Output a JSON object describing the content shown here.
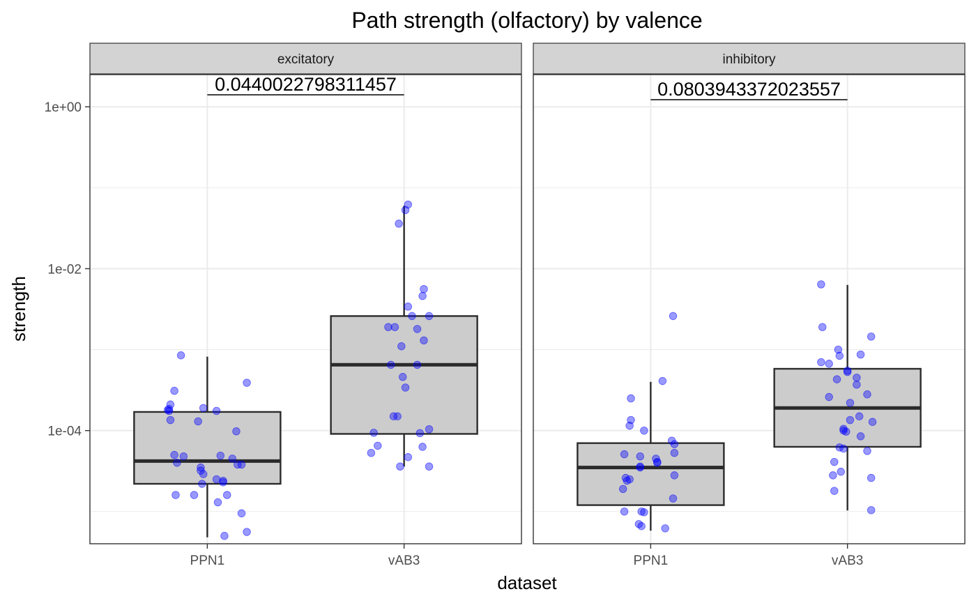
{
  "chart_data": {
    "type": "box",
    "title": "Path strength (olfactory) by valence",
    "xlabel": "dataset",
    "ylabel": "strength",
    "y_scale": "log10",
    "ylim": [
      4e-06,
      2.5
    ],
    "y_ticks": [
      {
        "value": 1,
        "label": "1e+00"
      },
      {
        "value": 0.01,
        "label": "1e-02"
      },
      {
        "value": 0.0001,
        "label": "1e-04"
      }
    ],
    "categories": [
      "PPN1",
      "vAB3"
    ],
    "grid": true,
    "colors": {
      "box_fill": "#cccccc",
      "box_line": "#2b2b2b",
      "points": "#0000ff",
      "strip_fill": "#d3d3d3",
      "grid": "#ebebeb"
    },
    "panels": [
      {
        "label": "excitatory",
        "p_value": "0.0440022798311457",
        "boxes": [
          {
            "category": "PPN1",
            "min": 4.8e-06,
            "q1": 2.2e-05,
            "median": 4.2e-05,
            "q3": 0.00017,
            "max": 0.00082,
            "points": [
              0.00085,
              0.00031,
              0.00039,
              0.00021,
              0.00019,
              0.00018,
              0.000175,
              0.000185,
              0.000175,
              0.000135,
              0.00013,
              9.8e-05,
              5e-05,
              4.8e-05,
              4.9e-05,
              4.5e-05,
              4e-05,
              3.8e-05,
              3.5e-05,
              3.8e-05,
              3.2e-05,
              2.9e-05,
              2.5e-05,
              2.4e-05,
              2.3e-05,
              2.2e-05,
              1.6e-05,
              1.6e-05,
              1.6e-05,
              1.3e-05,
              9.5e-06,
              5.6e-06,
              5e-06
            ],
            "jitter": [
              -0.2,
              -0.25,
              0.3,
              -0.28,
              -0.03,
              -0.3,
              -0.29,
              -0.29,
              0.07,
              -0.28,
              -0.07,
              0.22,
              -0.25,
              -0.18,
              0.1,
              0.19,
              -0.23,
              0.23,
              -0.05,
              0.26,
              -0.05,
              -0.03,
              0.07,
              0.12,
              0.12,
              -0.04,
              -0.24,
              -0.1,
              0.15,
              0.08,
              0.26,
              0.3,
              0.13
            ]
          },
          {
            "category": "vAB3",
            "min": 3.6e-05,
            "q1": 9.1e-05,
            "median": 0.00065,
            "q3": 0.0026,
            "max": 0.06,
            "points": [
              0.062,
              0.053,
              0.036,
              0.0056,
              0.0046,
              0.0034,
              0.0026,
              0.0026,
              0.0019,
              0.0019,
              0.0018,
              0.0013,
              0.0011,
              0.00065,
              0.00065,
              0.00046,
              0.00034,
              0.00015,
              0.00015,
              0.000104,
              9.4e-05,
              9.3e-05,
              6.5e-05,
              6.3e-05,
              5.3e-05,
              4.7e-05,
              3.6e-05,
              3.6e-05
            ],
            "jitter": [
              0.03,
              0.01,
              -0.04,
              0.15,
              0.14,
              0.03,
              0.06,
              0.19,
              -0.12,
              -0.07,
              0.1,
              0.15,
              -0.02,
              0.1,
              -0.1,
              -0.01,
              0.01,
              -0.08,
              -0.05,
              0.19,
              -0.23,
              0.12,
              -0.2,
              0.14,
              -0.25,
              0.03,
              -0.03,
              0.19
            ]
          }
        ]
      },
      {
        "label": "inhibitory",
        "p_value": "0.0803943372023557",
        "boxes": [
          {
            "category": "PPN1",
            "min": 5.8e-06,
            "q1": 1.2e-05,
            "median": 3.5e-05,
            "q3": 7e-05,
            "max": 0.0004,
            "points": [
              0.0026,
              0.00041,
              0.00025,
              0.000135,
              0.000115,
              0.0001,
              7.5e-05,
              6.8e-05,
              5.3e-05,
              5.1e-05,
              4.8e-05,
              4.5e-05,
              4.1e-05,
              4e-05,
              3.6e-05,
              3.5e-05,
              2.8e-05,
              2.6e-05,
              2.5e-05,
              2.4e-05,
              1.9e-05,
              1.45e-05,
              1e-05,
              1e-05,
              9.8e-06,
              7e-06,
              6.6e-06,
              6.2e-06
            ],
            "jitter": [
              0.17,
              0.09,
              -0.15,
              -0.15,
              -0.16,
              -0.05,
              0.16,
              0.18,
              0.18,
              -0.2,
              -0.08,
              0.04,
              0.05,
              0.05,
              -0.08,
              -0.08,
              0.18,
              -0.19,
              -0.16,
              -0.18,
              -0.21,
              0.17,
              -0.2,
              -0.07,
              -0.05,
              -0.09,
              -0.07,
              0.11
            ]
          },
          {
            "category": "vAB3",
            "min": 1.03e-05,
            "q1": 6.3e-05,
            "median": 0.00019,
            "q3": 0.00058,
            "max": 0.0063,
            "points": [
              0.0064,
              0.0019,
              0.00145,
              0.001,
              0.00087,
              0.00084,
              0.0007,
              0.00067,
              0.00055,
              0.00053,
              0.00045,
              0.00043,
              0.00037,
              0.00028,
              0.00026,
              0.00022,
              0.00015,
              0.000135,
              0.000128,
              0.000105,
              0.0001,
              9.7e-05,
              8.5e-05,
              6.2e-05,
              6e-05,
              5.6e-05,
              4.1e-05,
              3.1e-05,
              2.8e-05,
              2.6e-05,
              1.8e-05,
              1.04e-05
            ],
            "jitter": [
              -0.2,
              -0.19,
              0.18,
              -0.07,
              0.1,
              -0.06,
              -0.2,
              -0.14,
              0.0,
              0.0,
              0.07,
              -0.08,
              0.07,
              0.15,
              -0.14,
              0.02,
              0.09,
              0.02,
              0.19,
              -0.03,
              -0.03,
              -0.01,
              0.1,
              -0.06,
              -0.03,
              0.15,
              -0.1,
              -0.05,
              -0.11,
              0.18,
              -0.1,
              0.18
            ]
          }
        ]
      }
    ]
  }
}
